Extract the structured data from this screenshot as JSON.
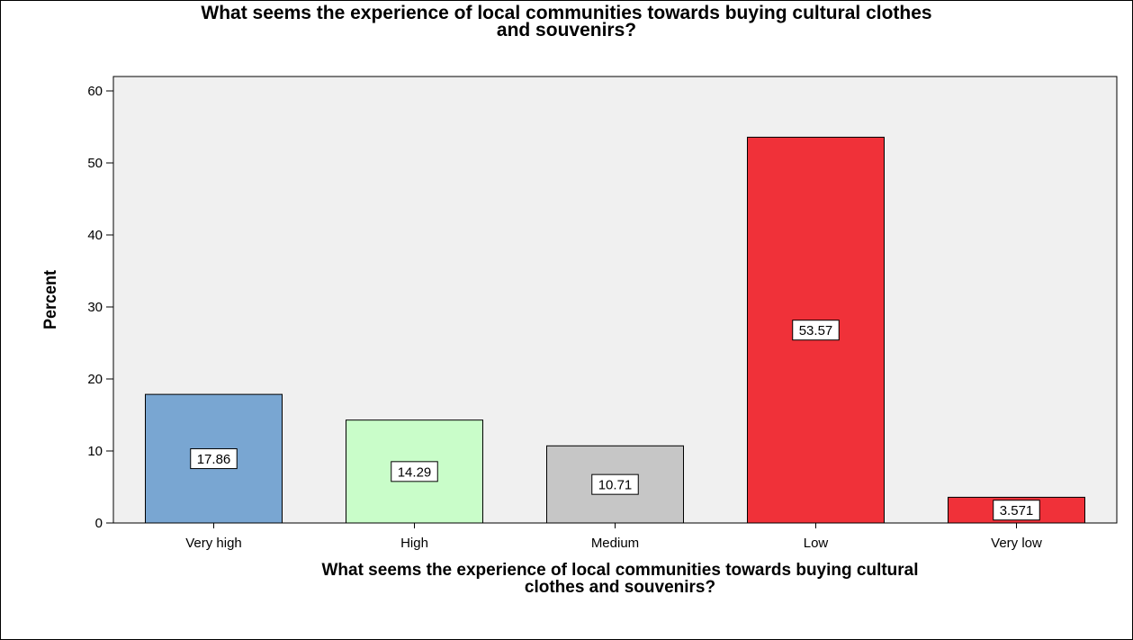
{
  "chart_data": {
    "type": "bar",
    "title": "What seems the experience of local communities towards buying cultural clothes and souvenirs?",
    "xlabel": "What seems the experience of local communities towards buying cultural clothes and souvenirs?",
    "ylabel": "Percent",
    "categories": [
      "Very high",
      "High",
      "Medium",
      "Low",
      "Very low"
    ],
    "values": [
      17.86,
      14.29,
      10.71,
      53.57,
      3.571
    ],
    "data_labels": [
      "17.86",
      "14.29",
      "10.71",
      "53.57",
      "3.571"
    ],
    "colors": [
      "#79a6d2",
      "#c9fdc9",
      "#c6c6c6",
      "#f03139",
      "#f03139"
    ],
    "plot_background": "#f0f0f0",
    "ylim": [
      0,
      62
    ],
    "yticks": [
      0,
      10,
      20,
      30,
      40,
      50,
      60
    ],
    "grid": false,
    "legend": "none"
  },
  "display": {
    "title_text": "What seems the experience of local communities towards buying cultural clothes\nand souvenirs?",
    "xlabel_lines": [
      "What seems the experience of local communities towards buying cultural",
      "clothes and souvenirs?"
    ]
  }
}
